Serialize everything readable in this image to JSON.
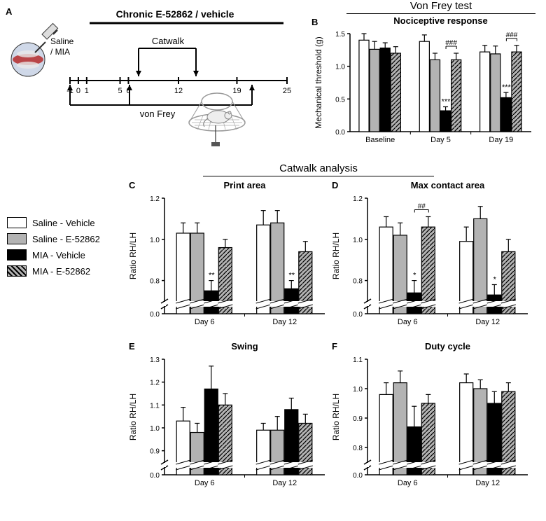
{
  "legend": {
    "items": [
      {
        "label": "Saline - Vehicle",
        "fill": "#ffffff",
        "pattern": "none"
      },
      {
        "label": "Saline - E-52862",
        "fill": "#b3b3b3",
        "pattern": "none"
      },
      {
        "label": "MIA - Vehicle",
        "fill": "#000000",
        "pattern": "none"
      },
      {
        "label": "MIA - E-52862",
        "fill": "#b3b3b3",
        "pattern": "hatch"
      }
    ]
  },
  "panelA": {
    "label": "A",
    "chronic_label": "Chronic E-52862 / vehicle",
    "injection_label": "Saline\n/ MIA",
    "catwalk_label": "Catwalk",
    "vonfrey_label": "von Frey",
    "ticks": [
      -1,
      0,
      1,
      5,
      6,
      12,
      19,
      25
    ]
  },
  "panelB": {
    "label": "B",
    "section_title": "Von Frey test",
    "title": "Nociceptive response",
    "ylabel": "Mechanical threshold (g)",
    "ylim": [
      0,
      1.5
    ],
    "yticks": [
      0.0,
      0.5,
      1.0,
      1.5
    ],
    "groups": [
      "Baseline",
      "Day 5",
      "Day 19"
    ],
    "series": [
      {
        "name": "Saline-Vehicle",
        "fill": "#ffffff",
        "pattern": "none",
        "vals": [
          1.4,
          1.38,
          1.22
        ],
        "err": [
          0.1,
          0.1,
          0.1
        ]
      },
      {
        "name": "Saline-E52862",
        "fill": "#b3b3b3",
        "pattern": "none",
        "vals": [
          1.26,
          1.1,
          1.19
        ],
        "err": [
          0.12,
          0.1,
          0.12
        ]
      },
      {
        "name": "MIA-Vehicle",
        "fill": "#000000",
        "pattern": "none",
        "vals": [
          1.28,
          0.32,
          0.52
        ],
        "err": [
          0.08,
          0.06,
          0.08
        ]
      },
      {
        "name": "MIA-E52862",
        "fill": "#b3b3b3",
        "pattern": "hatch",
        "vals": [
          1.2,
          1.1,
          1.22
        ],
        "err": [
          0.1,
          0.1,
          0.1
        ]
      }
    ],
    "annotations": [
      {
        "group": 1,
        "series": 2,
        "text": "***"
      },
      {
        "group": 1,
        "series": 3,
        "text": "###",
        "bracket": true
      },
      {
        "group": 2,
        "series": 2,
        "text": "***"
      },
      {
        "group": 2,
        "series": 3,
        "text": "###",
        "bracket": true
      }
    ]
  },
  "catwalk_section_title": "Catwalk analysis",
  "panelC": {
    "label": "C",
    "title": "Print area",
    "ylabel": "Ratio RH/LH",
    "ylim": [
      0,
      1.2
    ],
    "yticks": [
      0.0,
      0.8,
      1.0,
      1.2
    ],
    "break_at": 0.7,
    "groups": [
      "Day 6",
      "Day 12"
    ],
    "series": [
      {
        "fill": "#ffffff",
        "pattern": "none",
        "vals": [
          1.03,
          1.07
        ],
        "err": [
          0.05,
          0.07
        ]
      },
      {
        "fill": "#b3b3b3",
        "pattern": "none",
        "vals": [
          1.03,
          1.08
        ],
        "err": [
          0.05,
          0.06
        ]
      },
      {
        "fill": "#000000",
        "pattern": "none",
        "vals": [
          0.75,
          0.76
        ],
        "err": [
          0.05,
          0.04
        ]
      },
      {
        "fill": "#b3b3b3",
        "pattern": "hatch",
        "vals": [
          0.96,
          0.94
        ],
        "err": [
          0.04,
          0.05
        ]
      }
    ],
    "annotations": [
      {
        "group": 0,
        "series": 2,
        "text": "**"
      },
      {
        "group": 1,
        "series": 2,
        "text": "**"
      }
    ]
  },
  "panelD": {
    "label": "D",
    "title": "Max contact area",
    "ylabel": "Ratio RH/LH",
    "ylim": [
      0,
      1.2
    ],
    "yticks": [
      0.0,
      0.8,
      1.0,
      1.2
    ],
    "break_at": 0.7,
    "groups": [
      "Day 6",
      "Day 12"
    ],
    "series": [
      {
        "fill": "#ffffff",
        "pattern": "none",
        "vals": [
          1.06,
          0.99
        ],
        "err": [
          0.05,
          0.07
        ]
      },
      {
        "fill": "#b3b3b3",
        "pattern": "none",
        "vals": [
          1.02,
          1.1
        ],
        "err": [
          0.06,
          0.06
        ]
      },
      {
        "fill": "#000000",
        "pattern": "none",
        "vals": [
          0.74,
          0.73
        ],
        "err": [
          0.06,
          0.05
        ]
      },
      {
        "fill": "#b3b3b3",
        "pattern": "hatch",
        "vals": [
          1.06,
          0.94
        ],
        "err": [
          0.05,
          0.06
        ]
      }
    ],
    "annotations": [
      {
        "group": 0,
        "series": 2,
        "text": "*"
      },
      {
        "group": 0,
        "series": 3,
        "text": "##",
        "bracket": true
      },
      {
        "group": 1,
        "series": 2,
        "text": "*"
      }
    ]
  },
  "panelE": {
    "label": "E",
    "title": "Swing",
    "ylabel": "Ratio RH/LH",
    "ylim": [
      0,
      1.3
    ],
    "yticks": [
      0.0,
      0.9,
      1.0,
      1.1,
      1.2,
      1.3
    ],
    "break_at": 0.85,
    "groups": [
      "Day 6",
      "Day 12"
    ],
    "series": [
      {
        "fill": "#ffffff",
        "pattern": "none",
        "vals": [
          1.03,
          0.99
        ],
        "err": [
          0.06,
          0.03
        ]
      },
      {
        "fill": "#b3b3b3",
        "pattern": "none",
        "vals": [
          0.98,
          0.99
        ],
        "err": [
          0.04,
          0.06
        ]
      },
      {
        "fill": "#000000",
        "pattern": "none",
        "vals": [
          1.17,
          1.08
        ],
        "err": [
          0.1,
          0.05
        ]
      },
      {
        "fill": "#b3b3b3",
        "pattern": "hatch",
        "vals": [
          1.1,
          1.02
        ],
        "err": [
          0.05,
          0.04
        ]
      }
    ],
    "annotations": []
  },
  "panelF": {
    "label": "F",
    "title": "Duty cycle",
    "ylabel": "Ratio RH/LH",
    "ylim": [
      0,
      1.1
    ],
    "yticks": [
      0.0,
      0.8,
      0.9,
      1.0,
      1.1
    ],
    "break_at": 0.75,
    "groups": [
      "Day 6",
      "Day 12"
    ],
    "series": [
      {
        "fill": "#ffffff",
        "pattern": "none",
        "vals": [
          0.98,
          1.02
        ],
        "err": [
          0.04,
          0.03
        ]
      },
      {
        "fill": "#b3b3b3",
        "pattern": "none",
        "vals": [
          1.02,
          1.0
        ],
        "err": [
          0.04,
          0.03
        ]
      },
      {
        "fill": "#000000",
        "pattern": "none",
        "vals": [
          0.87,
          0.95
        ],
        "err": [
          0.07,
          0.04
        ]
      },
      {
        "fill": "#b3b3b3",
        "pattern": "hatch",
        "vals": [
          0.95,
          0.99
        ],
        "err": [
          0.03,
          0.03
        ]
      }
    ],
    "annotations": []
  },
  "colors": {
    "axis": "#000000",
    "background": "#ffffff",
    "text": "#000000"
  }
}
